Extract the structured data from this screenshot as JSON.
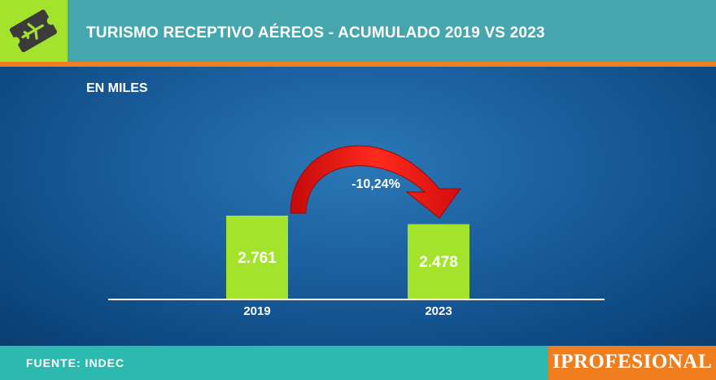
{
  "header": {
    "title": "TURISMO RECEPTIVO AÉREOS - ACUMULADO 2019 VS 2023",
    "logo_icon": "plane-ticket-icon"
  },
  "subtitle": "EN MILES",
  "footer": {
    "source": "FUENTE: INDEC",
    "brand": "IPROFESIONAL"
  },
  "colors": {
    "header": "#46a6ad",
    "accent_green": "#a3e32c",
    "accent_orange": "#f07d1e",
    "footer": "#2cbab0",
    "background": "#0f4f86",
    "arrow": "#e01010"
  },
  "chart_data": {
    "type": "bar",
    "categories": [
      "2019",
      "2023"
    ],
    "values": [
      2761,
      2478
    ],
    "value_labels": [
      "2.761",
      "2.478"
    ],
    "change_label": "-10,24%",
    "title": "TURISMO RECEPTIVO AÉREOS - ACUMULADO 2019 VS 2023",
    "ylabel": "",
    "xlabel": "",
    "grid": false,
    "legend": "none"
  }
}
